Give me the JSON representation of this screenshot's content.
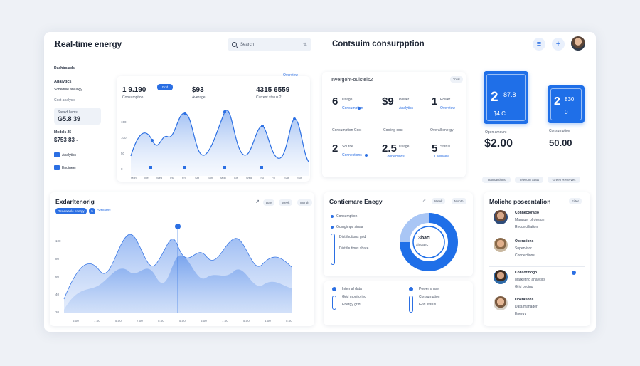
{
  "header": {
    "logo_mark": "R",
    "logo_text": "eal-time energy",
    "search_placeholder": "Search",
    "page_title": "Contsuim consurpption",
    "menu_icon": "menu-icon",
    "add_icon": "plus-icon"
  },
  "sidebar": {
    "heading": "Dashboards",
    "group_label": "Analytics",
    "group_sub": "Schedule analogy",
    "group_note": "Cost analysis",
    "box_label": "Saved Items",
    "box_value": "G5.8 39",
    "metric_label": "Models 25",
    "metric_value": "$753 83 -",
    "link1": "Analytics",
    "link2": "Engineer"
  },
  "top_chart": {
    "value1": "1 9.190",
    "pill": "Grid",
    "value2": "$93",
    "value3": "4315 6559",
    "sub1": "Consumption",
    "sub2": "Average",
    "sub3": "Current status 2",
    "legend_label": "Overview",
    "y_ticks": [
      "150",
      "100",
      "50",
      "0"
    ],
    "x_ticks": [
      "Mon",
      "Tue",
      "Wed",
      "Thu",
      "Fri",
      "Sat",
      "Sun",
      "Mon",
      "Tue",
      "Wed",
      "Thu",
      "Fri",
      "Sat",
      "Sun"
    ]
  },
  "stats": {
    "title": "Invergoht-ouisteis2",
    "tag": "Total",
    "cells": [
      {
        "value": "6",
        "label": "Usage",
        "sub": "Consumption"
      },
      {
        "value": "$9",
        "label": "Power",
        "sub": "Analytics"
      },
      {
        "value": "1",
        "label": "Power",
        "sub": "Overview"
      },
      {
        "value": "2",
        "label": "Source",
        "sub": "Connections"
      },
      {
        "value": "2.5",
        "label": "Usage",
        "sub": "Connections"
      },
      {
        "value": "5",
        "label": "Status",
        "sub": "Overview"
      }
    ],
    "row2_labels": [
      "Consumption Cost",
      "Cooling cost",
      "Overall energy"
    ]
  },
  "blue_cards": [
    {
      "value": "2",
      "sub": "87.8",
      "foot": "$4 C"
    },
    {
      "value": "2",
      "sub": "830",
      "foot": "0"
    }
  ],
  "price_cards": [
    {
      "label": "Open amount",
      "value": "$2.00"
    },
    {
      "label": "Consumption",
      "value": "50.00"
    }
  ],
  "filters": [
    "Transactions",
    "Telecom Stats",
    "Green Reserves"
  ],
  "area_chart": {
    "title": "Exdarltenorig",
    "tab_active": "Renewable energy",
    "tab_count": "5",
    "tab_label": "Streams",
    "buttons": [
      "Day",
      "Week",
      "Month"
    ],
    "y_ticks": [
      "100",
      "80",
      "60",
      "40",
      "20"
    ],
    "x_ticks": [
      "5:00",
      "7:00",
      "5:00",
      "7:00",
      "5:00",
      "5:00",
      "5:00",
      "7:00",
      "5:00",
      "4:00",
      "5:00"
    ]
  },
  "donut_card": {
    "title": "Contiemare Enegy",
    "buttons": [
      "Week",
      "Month"
    ],
    "center_line1": "3bac",
    "center_line2": "sinuaec",
    "items": [
      "Consumption",
      "Gomgimps sinaa",
      "Distributions grid",
      "Distributions share"
    ],
    "footer_items": [
      "Internal data",
      "Grid monitoring",
      "Energy grid"
    ],
    "footer_items2": [
      "Power share",
      "Consumption",
      "Grid status"
    ]
  },
  "people": {
    "title": "Moliche poscentalion",
    "tag": "Filter",
    "entries": [
      {
        "name": "Connectorago",
        "role": "Manager of design",
        "note": "Reconcilliation"
      },
      {
        "name": "Operations",
        "role": "Supervisor",
        "note": "Connections"
      },
      {
        "name": "Consormogo",
        "role": "Marketing analytics",
        "note": "Grid pricing"
      },
      {
        "name": "Operations",
        "role": "Data manager",
        "note": "Energy"
      }
    ]
  },
  "colors": {
    "accent": "#1f6fe8",
    "accent_light": "#a9c6f5",
    "background": "#eef1f6"
  }
}
